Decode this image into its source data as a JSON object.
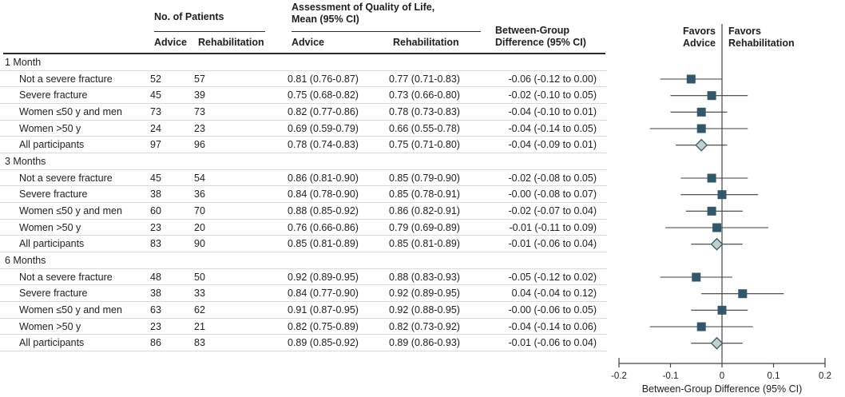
{
  "colors": {
    "marker_square": "#30586A",
    "diamond_fill": "#C4CFCB",
    "diamond_stroke": "#30586A",
    "ci_line": "#3c3c3c",
    "zero_line": "#555555",
    "axis_line": "#444444",
    "hairline": "#dadada",
    "header_rule": "#2b2b2b"
  },
  "table": {
    "group_headers": {
      "patients": "No. of Patients",
      "qol_line1": "Assessment of Quality of Life,",
      "qol_line2": "Mean (95% CI)",
      "diff_line1": "Between-Group",
      "diff_line2": "Difference (95% CI)"
    },
    "sub_headers": {
      "patients_advice": "Advice",
      "patients_rehabilitation": "Rehabilitation",
      "qol_advice": "Advice",
      "qol_rehabilitation": "Rehabilitation"
    },
    "sections": [
      {
        "label": "1 Month",
        "rows": [
          {
            "label": "Not a severe fracture",
            "advice_n": "52",
            "rehab_n": "57",
            "advice_qol": "0.81 (0.76-0.87)",
            "rehab_qol": "0.77 (0.71-0.83)",
            "diff": "-0.06 (-0.12 to 0.00)"
          },
          {
            "label": "Severe fracture",
            "advice_n": "45",
            "rehab_n": "39",
            "advice_qol": "0.75 (0.68-0.82)",
            "rehab_qol": "0.73 (0.66-0.80)",
            "diff": "-0.02 (-0.10 to 0.05)"
          },
          {
            "label": "Women ≤50 y and men",
            "advice_n": "73",
            "rehab_n": "73",
            "advice_qol": "0.82 (0.77-0.86)",
            "rehab_qol": "0.78 (0.73-0.83)",
            "diff": "-0.04 (-0.10 to 0.01)"
          },
          {
            "label": "Women >50 y",
            "advice_n": "24",
            "rehab_n": "23",
            "advice_qol": "0.69 (0.59-0.79)",
            "rehab_qol": "0.66 (0.55-0.78)",
            "diff": "-0.04 (-0.14 to 0.05)"
          },
          {
            "label": "All participants",
            "advice_n": "97",
            "rehab_n": "96",
            "advice_qol": "0.78 (0.74-0.83)",
            "rehab_qol": "0.75 (0.71-0.80)",
            "diff": "-0.04 (-0.09 to 0.01)"
          }
        ]
      },
      {
        "label": "3 Months",
        "rows": [
          {
            "label": "Not a severe fracture",
            "advice_n": "45",
            "rehab_n": "54",
            "advice_qol": "0.86 (0.81-0.90)",
            "rehab_qol": "0.85 (0.79-0.90)",
            "diff": "-0.02 (-0.08 to 0.05)"
          },
          {
            "label": "Severe fracture",
            "advice_n": "38",
            "rehab_n": "36",
            "advice_qol": "0.84 (0.78-0.90)",
            "rehab_qol": "0.85 (0.78-0.91)",
            "diff": "-0.00 (-0.08 to 0.07)"
          },
          {
            "label": "Women ≤50 y and men",
            "advice_n": "60",
            "rehab_n": "70",
            "advice_qol": "0.88 (0.85-0.92)",
            "rehab_qol": "0.86 (0.82-0.91)",
            "diff": "-0.02 (-0.07 to 0.04)"
          },
          {
            "label": "Women >50 y",
            "advice_n": "23",
            "rehab_n": "20",
            "advice_qol": "0.76 (0.66-0.86)",
            "rehab_qol": "0.79 (0.69-0.89)",
            "diff": "-0.01 (-0.11 to 0.09)"
          },
          {
            "label": "All participants",
            "advice_n": "83",
            "rehab_n": "90",
            "advice_qol": "0.85 (0.81-0.89)",
            "rehab_qol": "0.85 (0.81-0.89)",
            "diff": "-0.01 (-0.06 to 0.04)"
          }
        ]
      },
      {
        "label": "6 Months",
        "rows": [
          {
            "label": "Not a severe fracture",
            "advice_n": "48",
            "rehab_n": "50",
            "advice_qol": "0.92 (0.89-0.95)",
            "rehab_qol": "0.88 (0.83-0.93)",
            "diff": "-0.05 (-0.12 to 0.02)"
          },
          {
            "label": "Severe fracture",
            "advice_n": "38",
            "rehab_n": "33",
            "advice_qol": "0.84 (0.77-0.90)",
            "rehab_qol": "0.92 (0.89-0.95)",
            "diff": "0.04 (-0.04 to 0.12)"
          },
          {
            "label": "Women ≤50 y and men",
            "advice_n": "63",
            "rehab_n": "62",
            "advice_qol": "0.91 (0.87-0.95)",
            "rehab_qol": "0.92 (0.88-0.95)",
            "diff": "-0.00 (-0.06 to 0.05)"
          },
          {
            "label": "Women >50 y",
            "advice_n": "23",
            "rehab_n": "21",
            "advice_qol": "0.82 (0.75-0.89)",
            "rehab_qol": "0.82 (0.73-0.92)",
            "diff": "-0.04 (-0.14 to 0.06)"
          },
          {
            "label": "All participants",
            "advice_n": "86",
            "rehab_n": "83",
            "advice_qol": "0.89 (0.85-0.92)",
            "rehab_qol": "0.89 (0.86-0.93)",
            "diff": "-0.01 (-0.06 to 0.04)"
          }
        ]
      }
    ]
  },
  "plot_labels": {
    "favors_left_line1": "Favors",
    "favors_left_line2": "Advice",
    "favors_right_line1": "Favors",
    "favors_right_line2": "Rehabilitation"
  },
  "chart_data": {
    "type": "scatter",
    "subtype": "forest-plot",
    "xlabel": "Between-Group Difference (95% CI)",
    "xlim": [
      -0.2,
      0.2
    ],
    "x_ticks": [
      -0.2,
      -0.1,
      0,
      0.1,
      0.2
    ],
    "x_tick_labels": [
      "-0.2",
      "-0.1",
      "0",
      "0.1",
      "0.2"
    ],
    "zero_reference_line": 0,
    "left_region_label": "Favors Advice",
    "right_region_label": "Favors Rehabilitation",
    "grid": false,
    "groups": [
      {
        "group": "1 Month",
        "points": [
          {
            "label": "Not a severe fracture",
            "estimate": -0.06,
            "ci_low": -0.12,
            "ci_high": 0.0,
            "marker": "square"
          },
          {
            "label": "Severe fracture",
            "estimate": -0.02,
            "ci_low": -0.1,
            "ci_high": 0.05,
            "marker": "square"
          },
          {
            "label": "Women ≤50 y and men",
            "estimate": -0.04,
            "ci_low": -0.1,
            "ci_high": 0.01,
            "marker": "square"
          },
          {
            "label": "Women >50 y",
            "estimate": -0.04,
            "ci_low": -0.14,
            "ci_high": 0.05,
            "marker": "square"
          },
          {
            "label": "All participants",
            "estimate": -0.04,
            "ci_low": -0.09,
            "ci_high": 0.01,
            "marker": "diamond"
          }
        ]
      },
      {
        "group": "3 Months",
        "points": [
          {
            "label": "Not a severe fracture",
            "estimate": -0.02,
            "ci_low": -0.08,
            "ci_high": 0.05,
            "marker": "square"
          },
          {
            "label": "Severe fracture",
            "estimate": -0.0,
            "ci_low": -0.08,
            "ci_high": 0.07,
            "marker": "square"
          },
          {
            "label": "Women ≤50 y and men",
            "estimate": -0.02,
            "ci_low": -0.07,
            "ci_high": 0.04,
            "marker": "square"
          },
          {
            "label": "Women >50 y",
            "estimate": -0.01,
            "ci_low": -0.11,
            "ci_high": 0.09,
            "marker": "square"
          },
          {
            "label": "All participants",
            "estimate": -0.01,
            "ci_low": -0.06,
            "ci_high": 0.04,
            "marker": "diamond"
          }
        ]
      },
      {
        "group": "6 Months",
        "points": [
          {
            "label": "Not a severe fracture",
            "estimate": -0.05,
            "ci_low": -0.12,
            "ci_high": 0.02,
            "marker": "square"
          },
          {
            "label": "Severe fracture",
            "estimate": 0.04,
            "ci_low": -0.04,
            "ci_high": 0.12,
            "marker": "square"
          },
          {
            "label": "Women ≤50 y and men",
            "estimate": -0.0,
            "ci_low": -0.06,
            "ci_high": 0.05,
            "marker": "square"
          },
          {
            "label": "Women >50 y",
            "estimate": -0.04,
            "ci_low": -0.14,
            "ci_high": 0.06,
            "marker": "square"
          },
          {
            "label": "All participants",
            "estimate": -0.01,
            "ci_low": -0.06,
            "ci_high": 0.04,
            "marker": "diamond"
          }
        ]
      }
    ]
  }
}
